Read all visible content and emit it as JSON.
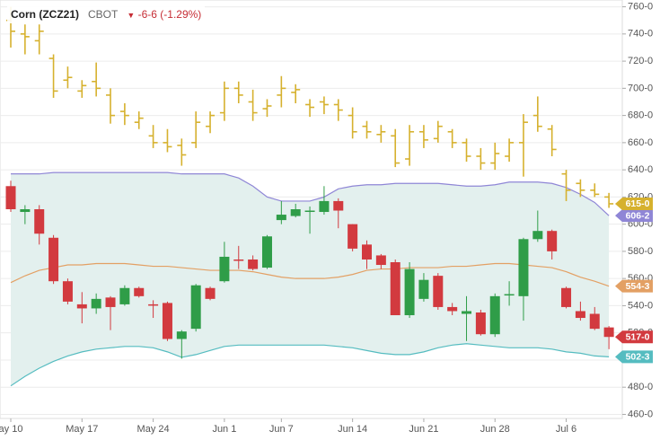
{
  "chart_data": {
    "type": "candlestick",
    "title": "Corn (ZCZ21)",
    "subtitle": "CBOT",
    "change": "-6-6 (-1.29%)",
    "change_color": "#c62d35",
    "categories": [
      "ay 10",
      null,
      null,
      null,
      null,
      "May 17",
      null,
      null,
      null,
      null,
      "May 24",
      null,
      null,
      null,
      null,
      "Jun 1",
      null,
      null,
      null,
      "Jun 7",
      null,
      null,
      null,
      null,
      "Jun 14",
      null,
      null,
      null,
      null,
      "Jun 21",
      null,
      null,
      null,
      null,
      "Jun 28",
      null,
      null,
      null,
      null,
      "Jul 6",
      null,
      null,
      null
    ],
    "ylim": [
      457,
      765
    ],
    "yticks": [
      {
        "value": 460,
        "label": "460-0"
      },
      {
        "value": 480,
        "label": "480-0"
      },
      {
        "value": 500,
        "label": "500-0"
      },
      {
        "value": 520,
        "label": "520-0"
      },
      {
        "value": 540,
        "label": "540-0"
      },
      {
        "value": 560,
        "label": "560-0"
      },
      {
        "value": 580,
        "label": "580-0"
      },
      {
        "value": 600,
        "label": "600-0"
      },
      {
        "value": 620,
        "label": "620-0"
      },
      {
        "value": 640,
        "label": "640-0"
      },
      {
        "value": 660,
        "label": "660-0"
      },
      {
        "value": 680,
        "label": "680-0"
      },
      {
        "value": 700,
        "label": "700-0"
      },
      {
        "value": 720,
        "label": "720-0"
      },
      {
        "value": 740,
        "label": "740-0"
      },
      {
        "value": 760,
        "label": "760-0"
      }
    ],
    "grid": true,
    "band_fill": "#e3f0ee",
    "series": [
      {
        "type": "candlestick",
        "up_color": "#2f9d48",
        "down_color": "#d23a3f",
        "open": [
          628,
          609,
          611,
          590,
          558,
          541,
          538,
          546,
          541,
          553,
          541,
          542,
          515.5,
          523,
          553,
          558,
          574,
          574,
          568,
          603,
          606,
          610,
          609,
          617,
          600,
          585,
          577,
          572,
          533,
          545,
          562,
          539,
          534,
          535,
          519,
          548,
          547,
          589,
          595,
          553,
          536,
          534,
          524
        ],
        "high": [
          632,
          614,
          614,
          592,
          560,
          550,
          549,
          547,
          555,
          554,
          544,
          543,
          522,
          556,
          554,
          587,
          584,
          577,
          592,
          617,
          615,
          613,
          628,
          619,
          600,
          588,
          578,
          574,
          572,
          564,
          564,
          542,
          547,
          537,
          549,
          558,
          590,
          610,
          596,
          554,
          543,
          539,
          525
        ],
        "low": [
          609,
          600,
          585,
          556,
          541,
          527,
          534,
          522,
          540,
          546,
          531,
          514,
          501,
          521,
          544,
          557,
          567,
          566,
          567,
          600,
          605,
          593,
          607,
          597,
          580,
          567,
          567,
          533,
          531,
          543,
          537,
          533,
          514,
          518,
          517,
          540,
          529,
          587,
          574,
          538,
          529,
          522,
          508
        ],
        "close": [
          611,
          611,
          593,
          558,
          543,
          538,
          545,
          539,
          553,
          547,
          540,
          515.5,
          521,
          555,
          545,
          576,
          573.5,
          567,
          591,
          607,
          611,
          610,
          617,
          610,
          582,
          574,
          570,
          533,
          567,
          559,
          539,
          536,
          536,
          519,
          547,
          548.5,
          589,
          595,
          580,
          539,
          531,
          523,
          517
        ],
        "value_labels": [
          null,
          null,
          null,
          null,
          null,
          null,
          null,
          null,
          null,
          null,
          null,
          null,
          null,
          null,
          null,
          null,
          null,
          null,
          null,
          null,
          null,
          null,
          null,
          null,
          null,
          null,
          null,
          null,
          null,
          null,
          null,
          null,
          null,
          null,
          null,
          null,
          null,
          null,
          null,
          null,
          null,
          null,
          "517-0"
        ]
      },
      {
        "type": "ohlc",
        "color": "#d6b12e",
        "open": [
          750,
          740,
          735,
          722,
          706,
          698,
          705,
          695,
          683,
          675,
          665,
          660,
          658,
          660,
          672,
          682,
          700,
          690,
          685,
          695,
          697,
          688,
          690,
          688,
          680,
          672,
          666,
          665,
          648,
          668,
          663,
          668,
          660,
          650,
          645,
          650,
          660,
          680,
          670,
          637,
          630,
          625,
          620
        ],
        "high": [
          760,
          747,
          747,
          725,
          716,
          706,
          719,
          700,
          689,
          683,
          673,
          670,
          663,
          683,
          683,
          705,
          705,
          699,
          692,
          709,
          703,
          692,
          694,
          692,
          686,
          676,
          673,
          670,
          673,
          673,
          676,
          670,
          663,
          656,
          660,
          663,
          681,
          694,
          673,
          640,
          633,
          630,
          623
        ],
        "low": [
          730,
          725,
          725,
          693,
          700,
          693,
          694,
          674,
          673,
          670,
          656,
          653,
          643,
          656,
          667,
          676,
          689,
          676,
          679,
          686,
          689,
          679,
          681,
          676,
          663,
          663,
          660,
          642,
          643,
          656,
          660,
          656,
          646,
          640,
          640,
          646,
          635,
          668,
          650,
          617,
          620,
          620,
          612
        ],
        "close": [
          742,
          738,
          742,
          698,
          708,
          702,
          700,
          680,
          680,
          678,
          660,
          657,
          651,
          675,
          680,
          700,
          695,
          682,
          687,
          700,
          699,
          686,
          688,
          684,
          668,
          668,
          668,
          645,
          668,
          662,
          672,
          660,
          650,
          645,
          652,
          660,
          675,
          672,
          655,
          625,
          625,
          622,
          615
        ],
        "value_labels": [
          null,
          null,
          null,
          null,
          null,
          null,
          null,
          null,
          null,
          null,
          null,
          null,
          null,
          null,
          null,
          null,
          null,
          null,
          null,
          null,
          null,
          null,
          null,
          null,
          null,
          null,
          null,
          null,
          null,
          null,
          null,
          null,
          null,
          null,
          null,
          null,
          null,
          null,
          null,
          null,
          null,
          null,
          "615-0"
        ]
      },
      {
        "type": "line",
        "role": "upper",
        "color": "#8f86d6",
        "values": [
          637,
          637,
          637,
          638,
          638,
          638,
          638,
          638,
          638,
          638,
          638,
          638,
          637,
          637,
          637,
          637,
          634,
          628,
          620,
          617,
          617,
          617,
          620,
          626,
          628,
          629,
          629,
          630,
          630,
          630,
          630,
          629,
          628,
          628,
          629,
          631,
          631,
          631,
          630,
          627,
          622,
          616,
          606.25
        ],
        "value_labels": [
          null,
          null,
          null,
          null,
          null,
          null,
          null,
          null,
          null,
          null,
          null,
          null,
          null,
          null,
          null,
          null,
          null,
          null,
          null,
          null,
          null,
          null,
          null,
          null,
          null,
          null,
          null,
          null,
          null,
          null,
          null,
          null,
          null,
          null,
          null,
          null,
          null,
          null,
          null,
          null,
          null,
          null,
          "606-2"
        ]
      },
      {
        "type": "line",
        "role": "middle",
        "color": "#e3a064",
        "values": [
          557,
          562,
          566,
          568,
          570,
          570,
          571,
          571,
          571,
          570,
          569,
          569,
          568,
          567,
          566,
          566,
          566,
          565,
          563,
          561,
          560,
          560,
          560,
          561,
          563,
          566,
          567,
          567,
          568,
          568,
          568,
          569,
          569,
          570,
          571,
          571,
          570,
          569,
          568,
          565,
          561,
          558,
          554.375
        ],
        "value_labels": [
          null,
          null,
          null,
          null,
          null,
          null,
          null,
          null,
          null,
          null,
          null,
          null,
          null,
          null,
          null,
          null,
          null,
          null,
          null,
          null,
          null,
          null,
          null,
          null,
          null,
          null,
          null,
          null,
          null,
          null,
          null,
          null,
          null,
          null,
          null,
          null,
          null,
          null,
          null,
          null,
          null,
          null,
          "554-3"
        ]
      },
      {
        "type": "line",
        "role": "lower",
        "color": "#55bcc0",
        "values": [
          481,
          488,
          494,
          499,
          503,
          506,
          508,
          509,
          510,
          510,
          509,
          506,
          502,
          504,
          507,
          510,
          511,
          511,
          511,
          511,
          511,
          511,
          511,
          510,
          509,
          507,
          505,
          504,
          504,
          506,
          509,
          511,
          512,
          511,
          510,
          509,
          509,
          509,
          508,
          506,
          505,
          503,
          502.375
        ],
        "value_labels": [
          null,
          null,
          null,
          null,
          null,
          null,
          null,
          null,
          null,
          null,
          null,
          null,
          null,
          null,
          null,
          null,
          null,
          null,
          null,
          null,
          null,
          null,
          null,
          null,
          null,
          null,
          null,
          null,
          null,
          null,
          null,
          null,
          null,
          null,
          null,
          null,
          null,
          null,
          null,
          null,
          null,
          null,
          "502-3"
        ]
      }
    ]
  }
}
